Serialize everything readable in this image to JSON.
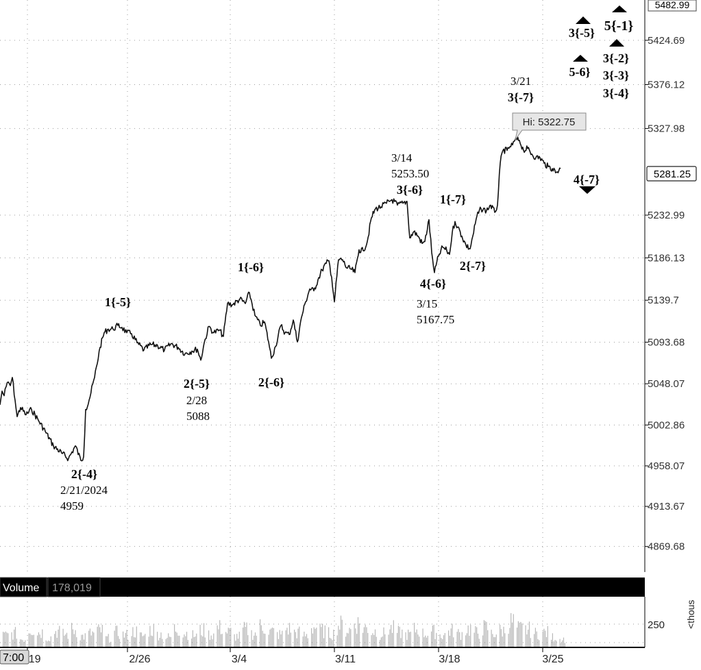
{
  "chart_data": {
    "type": "line",
    "symbol": "/ES",
    "y_ticks": [
      "5424.69",
      "5376.12",
      "5327.98",
      "5232.99",
      "5186.13",
      "5139.7",
      "5093.68",
      "5048.07",
      "5002.86",
      "4958.07",
      "4913.67",
      "4869.68"
    ],
    "y_top_label": "5482.99",
    "last_price": "5281.25",
    "hi_label": "Hi: 5322.75",
    "x_ticks": [
      "2/19",
      "2/26",
      "3/4",
      "3/11",
      "3/18",
      "3/25"
    ],
    "time_label": "7:00",
    "ylim": [
      4850,
      5485
    ],
    "series": [
      {
        "x": [
          0,
          3,
          6,
          9,
          12,
          15,
          18,
          22,
          25,
          30,
          38,
          46,
          56,
          66,
          78,
          90,
          100,
          110,
          118,
          122,
          125,
          130,
          138,
          146,
          152,
          158,
          165,
          172,
          178,
          185,
          192,
          200,
          210,
          220,
          230,
          240,
          250,
          260,
          270,
          280,
          288,
          293,
          298,
          305,
          312,
          320,
          326,
          332,
          340,
          350,
          358,
          364,
          372,
          380,
          386,
          392,
          396,
          402,
          410,
          416,
          422,
          428,
          434,
          440,
          446,
          452,
          458,
          464,
          470,
          476,
          480,
          484,
          488,
          494,
          500,
          506,
          512,
          518,
          524,
          530,
          536,
          542,
          548,
          556,
          564,
          572,
          580,
          588,
          594,
          598,
          604,
          610,
          616,
          620,
          626,
          630,
          634,
          640,
          646,
          652,
          656,
          660,
          664,
          668,
          674,
          680,
          686,
          690,
          696,
          702,
          710,
          716,
          722,
          726,
          730,
          734,
          740,
          744,
          748,
          752,
          758,
          764,
          770,
          776,
          782,
          788,
          794,
          800,
          806,
          812,
          818
        ],
        "y": [
          5025,
          5040,
          5035,
          5045,
          5050,
          5046,
          5055,
          5030,
          5012,
          5022,
          5014,
          5020,
          5008,
          4996,
          4980,
          4972,
          4966,
          4980,
          4964,
          4968,
          5020,
          5030,
          5055,
          5088,
          5104,
          5108,
          5108,
          5112,
          5110,
          5104,
          5103,
          5093,
          5085,
          5091,
          5090,
          5085,
          5092,
          5088,
          5081,
          5084,
          5086,
          5074,
          5093,
          5111,
          5104,
          5107,
          5100,
          5136,
          5135,
          5141,
          5136,
          5148,
          5123,
          5112,
          5116,
          5094,
          5076,
          5089,
          5112,
          5104,
          5102,
          5118,
          5094,
          5121,
          5138,
          5152,
          5150,
          5162,
          5173,
          5180,
          5183,
          5165,
          5138,
          5184,
          5184,
          5175,
          5174,
          5170,
          5195,
          5194,
          5204,
          5230,
          5240,
          5242,
          5246,
          5250,
          5244,
          5246,
          5248,
          5208,
          5215,
          5210,
          5202,
          5204,
          5228,
          5192,
          5170,
          5188,
          5198,
          5194,
          5190,
          5214,
          5226,
          5220,
          5210,
          5200,
          5196,
          5210,
          5232,
          5240,
          5238,
          5244,
          5236,
          5244,
          5290,
          5304,
          5304,
          5308,
          5310,
          5316,
          5315,
          5304,
          5306,
          5300,
          5296,
          5296,
          5290,
          5286,
          5284,
          5280,
          5284
        ]
      }
    ],
    "volume_label": "Volume",
    "volume_value": "178,019",
    "volume_tick": "250",
    "volume_unit": "<thous",
    "volume_bars": [
      26,
      30,
      18,
      40,
      33,
      22,
      35,
      28,
      38,
      24,
      30,
      36,
      20,
      32,
      27,
      34,
      25,
      38,
      29,
      22,
      40,
      31,
      26,
      36,
      28,
      42,
      33,
      24,
      38,
      30,
      45,
      34,
      28,
      40,
      32,
      26,
      44,
      36,
      30,
      48,
      38,
      52,
      42,
      35,
      30,
      40,
      32,
      28,
      38,
      30,
      34,
      27,
      36,
      30,
      40,
      32,
      42,
      30,
      36,
      55,
      40,
      38,
      30,
      32,
      22,
      18
    ]
  },
  "annotations": {
    "a_2m4_label": "2{-4}",
    "a_2m4_date": "2/21/2024",
    "a_2m4_price": "4959",
    "a_1m5": "1{-5}",
    "a_2m5_label": "2{-5}",
    "a_2m5_date": "2/28",
    "a_2m5_price": "5088",
    "a_1m6": "1{-6}",
    "a_2m6": "2{-6}",
    "a_3m6_date": "3/14",
    "a_3m6_price": "5253.50",
    "a_3m6_label": "3{-6}",
    "a_4m6_label": "4{-6}",
    "a_4m6_date": "3/15",
    "a_4m6_price": "5167.75",
    "a_1m7": "1{-7}",
    "a_2m7": "2{-7}",
    "a_3m7_date": "3/21",
    "a_3m7_label": "3{-7}",
    "a_4m7": "4{-7}",
    "a_3m5": "3{-5}",
    "a_5m6": "5-6}",
    "a_5m1": "5{-1}",
    "a_3m2": "3{-2}",
    "a_3m3": "3{-3}",
    "a_3m4": "3{-4}"
  },
  "colors": {
    "price_line": "#111111",
    "axis_bg": "#ffffff",
    "tooltip_bg": "#e6e6e6",
    "panel_bg": "#000000",
    "volume_bar": "#b8b8b8"
  }
}
